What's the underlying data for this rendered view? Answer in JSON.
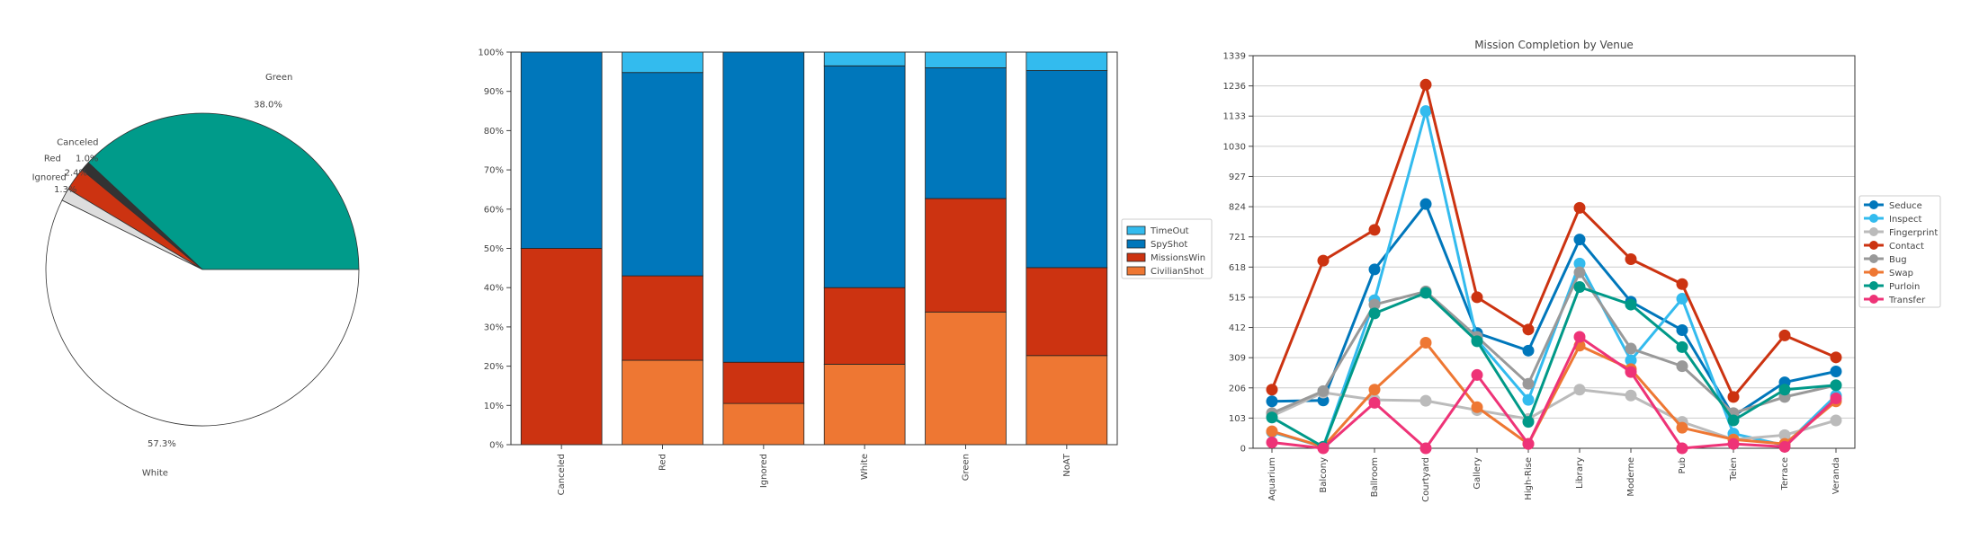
{
  "chart_data": [
    {
      "type": "pie",
      "slices": [
        {
          "label": "Green",
          "value": 38.0,
          "pct_label": "38.0%",
          "color": "#009B8A"
        },
        {
          "label": "Canceled",
          "value": 1.0,
          "pct_label": "1.0%",
          "color": "#333333"
        },
        {
          "label": "Red",
          "value": 2.4,
          "pct_label": "2.4%",
          "color": "#CC3311"
        },
        {
          "label": "Ignored",
          "value": 1.3,
          "pct_label": "1.3%",
          "color": "#DDDDDD"
        },
        {
          "label": "White",
          "value": 57.3,
          "pct_label": "57.3%",
          "color": "#FFFFFF"
        }
      ]
    },
    {
      "type": "bar",
      "stacked": true,
      "categories": [
        "Canceled",
        "Red",
        "Ignored",
        "White",
        "Green",
        "NoAT"
      ],
      "series": [
        {
          "name": "CivilianShot",
          "color": "#EE7733",
          "values": [
            0,
            21.5,
            10.5,
            20.5,
            33.8,
            22.7
          ]
        },
        {
          "name": "MissionsWin",
          "color": "#CC3311",
          "values": [
            50,
            21.5,
            10.5,
            19.5,
            28.9,
            22.4
          ]
        },
        {
          "name": "SpyShot",
          "color": "#0077BB",
          "values": [
            50,
            51.8,
            79.0,
            56.5,
            33.3,
            50.2
          ]
        },
        {
          "name": "TimeOut",
          "color": "#33BBEE",
          "values": [
            0,
            5.2,
            0,
            3.5,
            4.0,
            4.7
          ]
        }
      ],
      "legend_order": [
        "TimeOut",
        "SpyShot",
        "MissionsWin",
        "CivilianShot"
      ],
      "ylim": [
        0,
        100
      ],
      "yticks": [
        "0%",
        "10%",
        "20%",
        "30%",
        "40%",
        "50%",
        "60%",
        "70%",
        "80%",
        "90%",
        "100%"
      ],
      "legend": "right"
    },
    {
      "type": "line",
      "title": "Mission Completion by Venue",
      "categories": [
        "Aquarium",
        "Balcony",
        "Ballroom",
        "Courtyard",
        "Gallery",
        "High-Rise",
        "Library",
        "Moderne",
        "Pub",
        "Teien",
        "Terrace",
        "Veranda"
      ],
      "ylim": [
        0,
        1339
      ],
      "yticks": [
        "0",
        "103",
        "206",
        "309",
        "412",
        "515",
        "618",
        "721",
        "824",
        "927",
        "1030",
        "1133",
        "1236",
        "1339"
      ],
      "grid": true,
      "legend": "right",
      "series": [
        {
          "name": "Seduce",
          "color": "#0077BB",
          "values": [
            160,
            163,
            610,
            833,
            393,
            333,
            712,
            500,
            403,
            110,
            225,
            262
          ]
        },
        {
          "name": "Inspect",
          "color": "#33BBEE",
          "values": [
            55,
            5,
            505,
            1150,
            370,
            165,
            630,
            300,
            510,
            50,
            10,
            180
          ]
        },
        {
          "name": "Fingerprint",
          "color": "#BBBBBB",
          "values": [
            110,
            190,
            165,
            162,
            130,
            100,
            200,
            180,
            90,
            30,
            45,
            95
          ]
        },
        {
          "name": "Contact",
          "color": "#CC3311",
          "values": [
            200,
            640,
            745,
            1240,
            515,
            405,
            820,
            645,
            560,
            175,
            385,
            310
          ]
        },
        {
          "name": "Bug",
          "color": "#999999",
          "values": [
            120,
            195,
            490,
            535,
            380,
            220,
            600,
            340,
            280,
            120,
            175,
            215
          ]
        },
        {
          "name": "Swap",
          "color": "#EE7733",
          "values": [
            58,
            5,
            200,
            360,
            140,
            15,
            350,
            270,
            70,
            30,
            15,
            160
          ]
        },
        {
          "name": "Purloin",
          "color": "#009988",
          "values": [
            105,
            5,
            460,
            530,
            365,
            90,
            550,
            490,
            345,
            95,
            200,
            215
          ]
        },
        {
          "name": "Transfer",
          "color": "#EE3377",
          "values": [
            20,
            0,
            155,
            0,
            250,
            15,
            380,
            260,
            0,
            15,
            5,
            170
          ]
        }
      ]
    }
  ]
}
